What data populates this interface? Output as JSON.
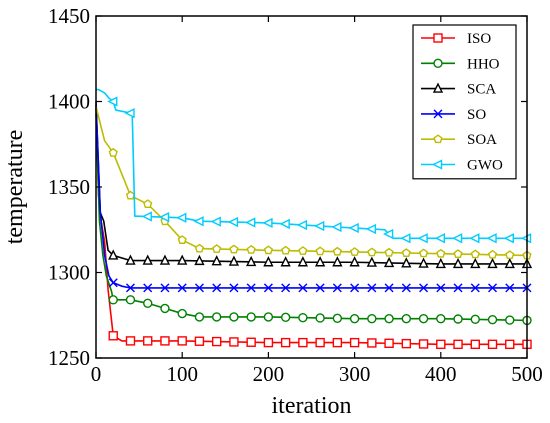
{
  "chart_data": {
    "type": "line",
    "title": "",
    "xlabel": "iteration",
    "ylabel": "temperature",
    "xlim": [
      0,
      500
    ],
    "ylim": [
      1250,
      1450
    ],
    "xticks": [
      0,
      100,
      200,
      300,
      400,
      500
    ],
    "yticks": [
      1250,
      1300,
      1350,
      1400,
      1450
    ],
    "grid": false,
    "legend_position": "top-right",
    "series": [
      {
        "name": "ISO",
        "color": "#ff0000",
        "marker": "square",
        "x": [
          0,
          3,
          6,
          10,
          14,
          20,
          30,
          40,
          60,
          100,
          200,
          300,
          400,
          500
        ],
        "y": [
          1396,
          1345,
          1330,
          1318,
          1290,
          1263,
          1260,
          1260,
          1260,
          1260,
          1259,
          1259,
          1258,
          1258
        ],
        "marker_x": [
          20,
          40,
          60,
          80,
          100,
          120,
          140,
          160,
          180,
          200,
          220,
          240,
          260,
          280,
          300,
          320,
          340,
          360,
          380,
          400,
          420,
          440,
          460,
          480,
          500
        ]
      },
      {
        "name": "HHO",
        "color": "#008000",
        "marker": "circle",
        "x": [
          0,
          4,
          8,
          12,
          18,
          20,
          40,
          60,
          80,
          100,
          120,
          200,
          300,
          400,
          500
        ],
        "y": [
          1393,
          1330,
          1310,
          1298,
          1289,
          1284,
          1284,
          1282,
          1279,
          1276,
          1274,
          1274,
          1273,
          1273,
          1272
        ],
        "marker_x": [
          20,
          40,
          60,
          80,
          100,
          120,
          140,
          160,
          180,
          200,
          220,
          240,
          260,
          280,
          300,
          320,
          340,
          360,
          380,
          400,
          420,
          440,
          460,
          480,
          500
        ]
      },
      {
        "name": "SCA",
        "color": "#000000",
        "marker": "triangle",
        "x": [
          0,
          5,
          9,
          14,
          20,
          40,
          100,
          200,
          300,
          400,
          500
        ],
        "y": [
          1398,
          1335,
          1330,
          1313,
          1310,
          1307,
          1307,
          1306,
          1306,
          1305,
          1305
        ],
        "marker_x": [
          20,
          40,
          60,
          80,
          100,
          120,
          140,
          160,
          180,
          200,
          220,
          240,
          260,
          280,
          300,
          320,
          340,
          360,
          380,
          400,
          420,
          440,
          460,
          480,
          500
        ]
      },
      {
        "name": "SO",
        "color": "#0000ff",
        "marker": "x",
        "x": [
          0,
          5,
          10,
          15,
          20,
          30,
          40,
          100,
          200,
          300,
          400,
          500
        ],
        "y": [
          1400,
          1335,
          1310,
          1298,
          1294,
          1292,
          1291,
          1291,
          1291,
          1291,
          1291,
          1291
        ],
        "marker_x": [
          20,
          40,
          60,
          80,
          100,
          120,
          140,
          160,
          180,
          200,
          220,
          240,
          260,
          280,
          300,
          320,
          340,
          360,
          380,
          400,
          420,
          440,
          460,
          480,
          500
        ]
      },
      {
        "name": "SOA",
        "color": "#bcbc00",
        "marker": "pentagon",
        "x": [
          0,
          10,
          20,
          40,
          60,
          80,
          100,
          120,
          200,
          300,
          400,
          500
        ],
        "y": [
          1397,
          1377,
          1370,
          1345,
          1340,
          1330,
          1319,
          1314,
          1313,
          1312,
          1311,
          1310
        ],
        "marker_x": [
          20,
          40,
          60,
          80,
          100,
          120,
          140,
          160,
          180,
          200,
          220,
          240,
          260,
          280,
          300,
          320,
          340,
          360,
          380,
          400,
          420,
          440,
          460,
          480,
          500
        ]
      },
      {
        "name": "GWO",
        "color": "#00ccff",
        "marker": "triangle-left",
        "x": [
          0,
          3,
          10,
          15,
          20,
          23,
          42,
          45,
          100,
          120,
          200,
          300,
          335,
          345,
          400,
          500
        ],
        "y": [
          1407,
          1407,
          1405,
          1402,
          1400,
          1395,
          1393,
          1333,
          1332,
          1330,
          1329,
          1326,
          1325,
          1320,
          1320,
          1320
        ],
        "marker_x": [
          20,
          40,
          60,
          80,
          100,
          120,
          140,
          160,
          180,
          200,
          220,
          240,
          260,
          280,
          300,
          320,
          340,
          360,
          380,
          400,
          420,
          440,
          460,
          480,
          500
        ]
      }
    ]
  }
}
